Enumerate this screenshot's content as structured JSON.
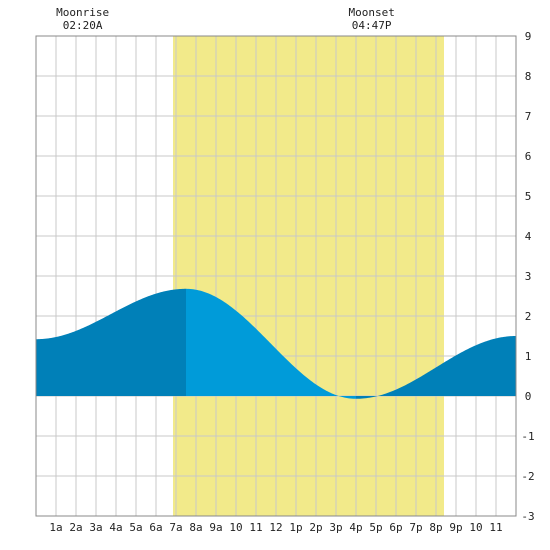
{
  "moon_events": [
    {
      "label": "Moonrise",
      "time": "02:20A",
      "hour": 2.333
    },
    {
      "label": "Moonset",
      "time": "04:47P",
      "hour": 16.783
    }
  ],
  "chart_data": {
    "type": "area",
    "title": "",
    "xlabel": "",
    "ylabel": "",
    "xlim": [
      0,
      24
    ],
    "ylim": [
      -3,
      9
    ],
    "grid": true,
    "x_tick_labels": [
      {
        "x": 1,
        "label": "1a"
      },
      {
        "x": 2,
        "label": "2a"
      },
      {
        "x": 3,
        "label": "3a"
      },
      {
        "x": 4,
        "label": "4a"
      },
      {
        "x": 5,
        "label": "5a"
      },
      {
        "x": 6,
        "label": "6a"
      },
      {
        "x": 7,
        "label": "7a"
      },
      {
        "x": 8,
        "label": "8a"
      },
      {
        "x": 9,
        "label": "9a"
      },
      {
        "x": 10,
        "label": "10"
      },
      {
        "x": 11,
        "label": "11"
      },
      {
        "x": 12,
        "label": "12"
      },
      {
        "x": 13,
        "label": "1p"
      },
      {
        "x": 14,
        "label": "2p"
      },
      {
        "x": 15,
        "label": "3p"
      },
      {
        "x": 16,
        "label": "4p"
      },
      {
        "x": 17,
        "label": "5p"
      },
      {
        "x": 18,
        "label": "6p"
      },
      {
        "x": 19,
        "label": "7p"
      },
      {
        "x": 20,
        "label": "8p"
      },
      {
        "x": 21,
        "label": "9p"
      },
      {
        "x": 22,
        "label": "10"
      },
      {
        "x": 23,
        "label": "11"
      }
    ],
    "y_ticks": [
      -3,
      -2,
      -1,
      0,
      1,
      2,
      3,
      4,
      5,
      6,
      7,
      8,
      9
    ],
    "daylight": {
      "start": 6.85,
      "end": 20.4
    },
    "tide_extrema": [
      {
        "hour": 0,
        "height": 1.42
      },
      {
        "hour": 7.5,
        "height": 2.68
      },
      {
        "hour": 16,
        "height": -0.07
      },
      {
        "hour": 24,
        "height": 1.5
      }
    ],
    "fill_split_hours": [
      7.5,
      16
    ],
    "colors": {
      "daylight": "#f2ea8a",
      "tide_dark": "#0080b8",
      "tide_light": "#009bd9",
      "grid": "#c8c8c8",
      "frame": "#888888"
    }
  }
}
